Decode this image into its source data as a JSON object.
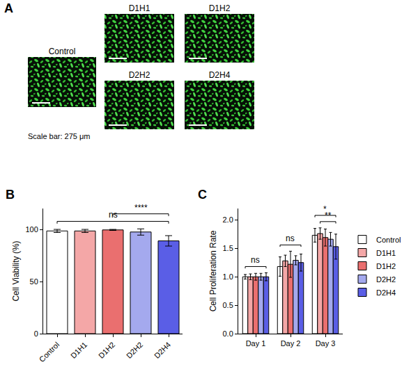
{
  "panel_a": {
    "letter": "A",
    "images": [
      {
        "label": "Control"
      },
      {
        "label": "D1H1"
      },
      {
        "label": "D1H2"
      },
      {
        "label": "D2H2"
      },
      {
        "label": "D2H4"
      }
    ],
    "scale_bar": "Scale bar: 275 μm"
  },
  "chart_data": [
    {
      "letter": "B",
      "type": "bar",
      "categories": [
        "Control",
        "D1H1",
        "D1H2",
        "D2H2",
        "D2H4"
      ],
      "values": [
        98.5,
        98.5,
        99.5,
        97.5,
        89
      ],
      "errors": [
        1.5,
        1.5,
        0.5,
        3,
        5
      ],
      "colors": [
        "#ffffff",
        "#f4a7a7",
        "#ea6f6f",
        "#a4a9ee",
        "#5a5ee6"
      ],
      "y_label": "Cell Viability (%)",
      "ylim": [
        0,
        120
      ],
      "yticks": [
        0,
        50,
        100
      ],
      "grid": false,
      "comparisons": [
        {
          "from": "Control",
          "to": "D2H4",
          "label": "ns"
        },
        {
          "from": "D1H2",
          "to": "D2H4",
          "label": "****"
        }
      ]
    },
    {
      "letter": "C",
      "type": "bar",
      "categories": [
        "Day 1",
        "Day 2",
        "Day 3"
      ],
      "series": [
        {
          "name": "Control",
          "color": "#ffffff",
          "values": [
            1.0,
            1.18,
            1.73
          ],
          "errors": [
            0.04,
            0.17,
            0.12
          ]
        },
        {
          "name": "D1H1",
          "color": "#f4a7a7",
          "values": [
            1.0,
            1.28,
            1.76
          ],
          "errors": [
            0.05,
            0.1,
            0.1
          ]
        },
        {
          "name": "D1H2",
          "color": "#ea6f6f",
          "values": [
            1.0,
            1.22,
            1.69
          ],
          "errors": [
            0.06,
            0.23,
            0.15
          ]
        },
        {
          "name": "D2H2",
          "color": "#a4a9ee",
          "values": [
            1.0,
            1.29,
            1.66
          ],
          "errors": [
            0.06,
            0.08,
            0.12
          ]
        },
        {
          "name": "D2H4",
          "color": "#5a5ee6",
          "values": [
            1.0,
            1.25,
            1.53
          ],
          "errors": [
            0.07,
            0.15,
            0.22
          ]
        }
      ],
      "y_label": "Cell Proliferation Rate",
      "ylim": [
        0,
        2.2
      ],
      "yticks": [
        {
          "value": 0,
          "label": "0.0"
        },
        {
          "value": 0.5,
          "label": "0.5"
        },
        {
          "value": 1,
          "label": "1.0"
        },
        {
          "value": 1.5,
          "label": "1.5"
        },
        {
          "value": 2,
          "label": "2.0"
        }
      ],
      "grid": false,
      "legend": "right",
      "comparisons": [
        {
          "category": "Day 1",
          "from": "Control",
          "to": "D2H4",
          "label": "ns"
        },
        {
          "category": "Day 2",
          "from": "Control",
          "to": "D2H4",
          "label": "ns"
        },
        {
          "category": "Day 3",
          "from": "D1H1",
          "to": "D2H4",
          "label": "**"
        },
        {
          "category": "Day 3",
          "from": "Control",
          "to": "D2H4",
          "label": "*"
        }
      ]
    }
  ]
}
